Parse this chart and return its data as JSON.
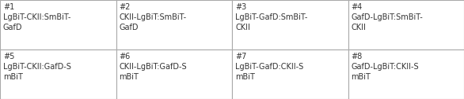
{
  "cells": [
    [
      "#1\nLgBiT-CKII:SmBiT-\nGafD",
      "#2\nCKII-LgBiT:SmBiT-\nGafD",
      "#3\nLgBiT-GafD:SmBiT-\nCKII",
      "#4\nGafD-LgBiT:SmBiT-\nCKII"
    ],
    [
      "#5\nLgBiT-CKII:GafD-S\nmBiT",
      "#6\nCKII-LgBiT:GafD-S\nmBiT",
      "#7\nLgBiT-GafD:CKII-S\nmBiT",
      "#8\nGafD-LgBiT:CKII-S\nmBiT"
    ]
  ],
  "background_color": "#ffffff",
  "border_color": "#aaaaaa",
  "text_color": "#333333",
  "font_size": 7.0,
  "figsize": [
    5.86,
    1.26
  ],
  "dpi": 100
}
